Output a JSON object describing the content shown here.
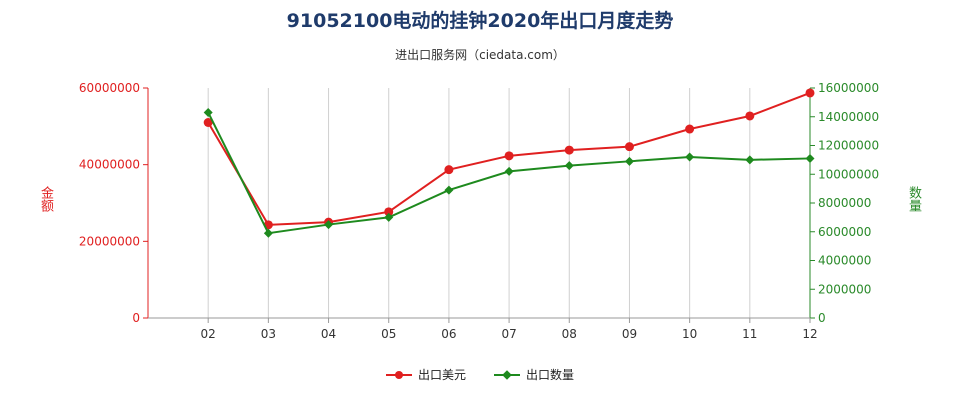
{
  "title": "91052100电动的挂钟2020年出口月度走势",
  "subtitle": "进出口服务网（ciedata.com）",
  "chart_data": {
    "type": "line",
    "categories": [
      "02",
      "03",
      "04",
      "05",
      "06",
      "07",
      "08",
      "09",
      "10",
      "11",
      "12"
    ],
    "y_left": {
      "label": "金额",
      "ylim": [
        0,
        60000000
      ],
      "ticks": [
        "0",
        "20000000",
        "40000000",
        "60000000"
      ],
      "color": "#e02020"
    },
    "y_right": {
      "label": "数量",
      "ylim": [
        0,
        16000000
      ],
      "ticks": [
        "0",
        "2000000",
        "4000000",
        "6000000",
        "8000000",
        "10000000",
        "12000000",
        "14000000",
        "16000000"
      ],
      "color": "#2a8a2a"
    },
    "series": [
      {
        "name": "出口美元",
        "axis": "left",
        "color": "#e02020",
        "marker": "circle",
        "values": [
          51000000,
          24300000,
          25000000,
          27700000,
          38700000,
          42300000,
          43800000,
          44700000,
          49300000,
          52700000,
          58700000
        ]
      },
      {
        "name": "出口数量",
        "axis": "right",
        "color": "#1e8a1e",
        "marker": "diamond",
        "values": [
          14300000,
          5900000,
          6500000,
          7000000,
          8900000,
          10200000,
          10600000,
          10900000,
          11200000,
          11000000,
          11100000
        ]
      }
    ],
    "grid": "vertical"
  }
}
